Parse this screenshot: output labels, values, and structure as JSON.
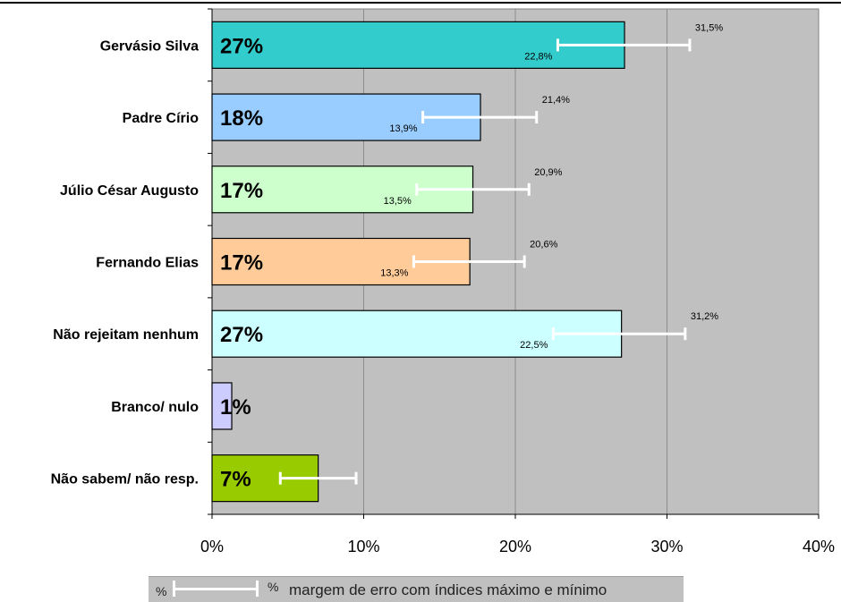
{
  "chart_data": {
    "type": "bar",
    "orientation": "horizontal",
    "categories": [
      "Gervásio Silva",
      "Padre Círio",
      "Júlio César Augusto",
      "Fernando Elias",
      "Não rejeitam nenhum",
      "Branco/ nulo",
      "Não sabem/ não resp."
    ],
    "values": [
      27.2,
      17.7,
      17.2,
      17.0,
      27.0,
      1.3,
      7.0
    ],
    "value_labels": [
      "27%",
      "18%",
      "17%",
      "17%",
      "27%",
      "1%",
      "7%"
    ],
    "error_low": [
      22.8,
      13.9,
      13.5,
      13.3,
      22.5,
      null,
      4.5
    ],
    "error_high": [
      31.5,
      21.4,
      20.9,
      20.6,
      31.2,
      null,
      9.5
    ],
    "error_low_labels": [
      "22,8%",
      "13,9%",
      "13,5%",
      "13,3%",
      "22,5%",
      "",
      ""
    ],
    "error_high_labels": [
      "31,5%",
      "21,4%",
      "20,9%",
      "20,6%",
      "31,2%",
      "",
      ""
    ],
    "colors": [
      "#33cccc",
      "#99ccff",
      "#ccffcc",
      "#ffcc99",
      "#ccffff",
      "#ccccff",
      "#99cc00"
    ],
    "x_ticks": [
      "0%",
      "10%",
      "20%",
      "30%",
      "40%"
    ],
    "xlim": [
      0,
      40
    ],
    "grid": true,
    "plot_background": "#c0c0c0",
    "error_bar_color": "#ffffff",
    "legend": {
      "placement": "bottom",
      "symbol_left": "%",
      "symbol_right": "%",
      "text": "margem de erro com índices máximo e mínimo"
    }
  }
}
